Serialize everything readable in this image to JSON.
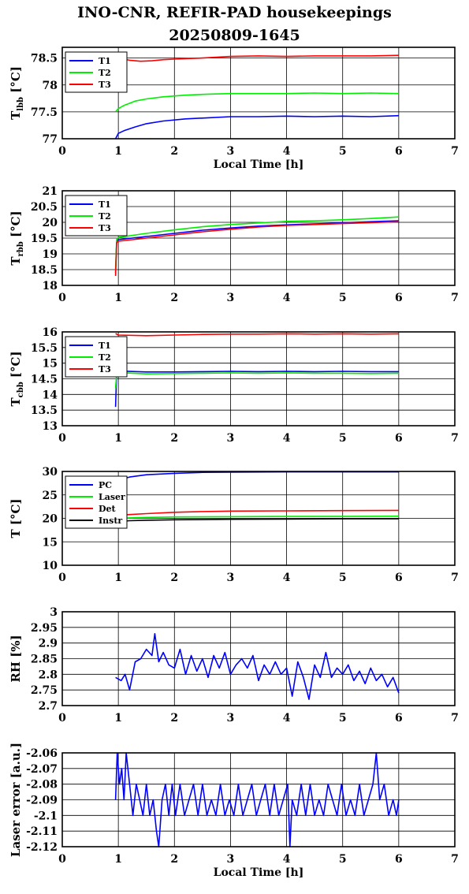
{
  "title_line1": "INO-CNR, REFIR-PAD housekeepings",
  "title_line2": "20250809-1645",
  "colors": {
    "blue": "#0000ff",
    "green": "#00ee00",
    "red": "#ff0000",
    "black": "#000000"
  },
  "chart_data": [
    {
      "type": "line",
      "ylabel_main": "T",
      "ylabel_sub": "lbb",
      "ylabel_rest": " [°C]",
      "xlabel": "Local Time [h]",
      "xlim": [
        0,
        7
      ],
      "ylim": [
        77,
        78.7
      ],
      "yticks": [
        "77",
        "77.5",
        "78",
        "78.5"
      ],
      "ytick_values": [
        77,
        77.5,
        78,
        78.5
      ],
      "xticks": [
        "0",
        "1",
        "2",
        "3",
        "4",
        "5",
        "6",
        "7"
      ],
      "grid": true,
      "legend_position": "top-left",
      "series": [
        {
          "name": "T1",
          "color": "#0000ff",
          "x": [
            0.95,
            1.0,
            1.1,
            1.3,
            1.5,
            1.8,
            2.2,
            2.6,
            3.0,
            3.5,
            4.0,
            4.5,
            5.0,
            5.5,
            6.0
          ],
          "y": [
            77.0,
            77.1,
            77.15,
            77.22,
            77.28,
            77.33,
            77.37,
            77.39,
            77.41,
            77.41,
            77.42,
            77.41,
            77.42,
            77.41,
            77.43
          ]
        },
        {
          "name": "T2",
          "color": "#00ee00",
          "x": [
            0.95,
            1.0,
            1.1,
            1.3,
            1.5,
            1.8,
            2.2,
            2.6,
            3.0,
            3.5,
            4.0,
            4.5,
            5.0,
            5.5,
            6.0
          ],
          "y": [
            77.5,
            77.56,
            77.62,
            77.7,
            77.74,
            77.78,
            77.81,
            77.83,
            77.84,
            77.84,
            77.84,
            77.85,
            77.84,
            77.85,
            77.84
          ]
        },
        {
          "name": "T3",
          "color": "#ff0000",
          "x": [
            0.95,
            1.0,
            1.2,
            1.4,
            1.6,
            1.8,
            2.0,
            2.5,
            3.0,
            3.5,
            4.0,
            4.5,
            5.0,
            5.5,
            6.0
          ],
          "y": [
            78.55,
            78.5,
            78.46,
            78.44,
            78.45,
            78.47,
            78.48,
            78.5,
            78.53,
            78.54,
            78.53,
            78.54,
            78.54,
            78.54,
            78.55
          ]
        }
      ]
    },
    {
      "type": "line",
      "ylabel_main": "T",
      "ylabel_sub": "rbb",
      "ylabel_rest": " [°C]",
      "xlabel": "",
      "xlim": [
        0,
        7
      ],
      "ylim": [
        18,
        21
      ],
      "yticks": [
        "18",
        "18.5",
        "19",
        "19.5",
        "20",
        "20.5",
        "21"
      ],
      "ytick_values": [
        18,
        18.5,
        19,
        19.5,
        20,
        20.5,
        21
      ],
      "xticks": [
        "0",
        "1",
        "2",
        "3",
        "4",
        "5",
        "6",
        "7"
      ],
      "grid": true,
      "legend_position": "top-left",
      "series": [
        {
          "name": "T1",
          "color": "#0000ff",
          "x": [
            0.95,
            0.97,
            1.0,
            1.5,
            2.0,
            2.5,
            3.0,
            3.5,
            4.0,
            4.5,
            5.0,
            5.5,
            6.0
          ],
          "y": [
            18.4,
            19.4,
            19.45,
            19.55,
            19.65,
            19.75,
            19.82,
            19.88,
            19.92,
            19.95,
            19.98,
            20.02,
            20.05
          ]
        },
        {
          "name": "T2",
          "color": "#00ee00",
          "x": [
            0.95,
            0.97,
            1.0,
            1.5,
            2.0,
            2.5,
            3.0,
            3.5,
            4.0,
            4.5,
            5.0,
            5.5,
            6.0
          ],
          "y": [
            18.5,
            19.45,
            19.52,
            19.65,
            19.76,
            19.86,
            19.93,
            19.98,
            20.03,
            20.05,
            20.08,
            20.12,
            20.17
          ]
        },
        {
          "name": "T3",
          "color": "#ff0000",
          "x": [
            0.95,
            0.97,
            1.0,
            1.5,
            2.0,
            2.5,
            3.0,
            3.5,
            4.0,
            4.5,
            5.0,
            5.5,
            6.0
          ],
          "y": [
            18.3,
            19.35,
            19.4,
            19.5,
            19.6,
            19.7,
            19.78,
            19.85,
            19.9,
            19.93,
            19.96,
            19.99,
            20.02
          ]
        }
      ]
    },
    {
      "type": "line",
      "ylabel_main": "T",
      "ylabel_sub": "cbb",
      "ylabel_rest": " [°C]",
      "xlabel": "",
      "xlim": [
        0,
        7
      ],
      "ylim": [
        13,
        16
      ],
      "yticks": [
        "13",
        "13.5",
        "14",
        "14.5",
        "15",
        "15.5",
        "16"
      ],
      "ytick_values": [
        13,
        13.5,
        14,
        14.5,
        15,
        15.5,
        16
      ],
      "xticks": [
        "0",
        "1",
        "2",
        "3",
        "4",
        "5",
        "6",
        "7"
      ],
      "grid": true,
      "legend_position": "top-left",
      "series": [
        {
          "name": "T1",
          "color": "#0000ff",
          "x": [
            0.95,
            0.97,
            1.0,
            1.5,
            2.0,
            2.5,
            3.0,
            3.5,
            4.0,
            4.5,
            5.0,
            5.5,
            6.0
          ],
          "y": [
            13.6,
            14.7,
            14.75,
            14.72,
            14.72,
            14.73,
            14.74,
            14.73,
            14.74,
            14.73,
            14.74,
            14.73,
            14.73
          ]
        },
        {
          "name": "T2",
          "color": "#00ee00",
          "x": [
            0.95,
            0.97,
            1.0,
            1.5,
            2.0,
            2.5,
            3.0,
            3.5,
            4.0,
            4.5,
            5.0,
            5.5,
            6.0
          ],
          "y": [
            14.2,
            14.65,
            14.7,
            14.66,
            14.67,
            14.68,
            14.69,
            14.68,
            14.69,
            14.68,
            14.68,
            14.67,
            14.68
          ]
        },
        {
          "name": "T3",
          "color": "#ff0000",
          "x": [
            0.95,
            1.0,
            1.5,
            2.0,
            2.5,
            3.0,
            3.5,
            4.0,
            4.5,
            5.0,
            5.5,
            6.0
          ],
          "y": [
            15.95,
            15.9,
            15.88,
            15.9,
            15.92,
            15.93,
            15.93,
            15.94,
            15.93,
            15.94,
            15.93,
            15.94
          ]
        }
      ]
    },
    {
      "type": "line",
      "ylabel_main": "T [°C]",
      "ylabel_sub": "",
      "ylabel_rest": "",
      "xlabel": "",
      "xlim": [
        0,
        7
      ],
      "ylim": [
        10,
        30
      ],
      "yticks": [
        "10",
        "15",
        "20",
        "25",
        "30"
      ],
      "ytick_values": [
        10,
        15,
        20,
        25,
        30
      ],
      "xticks": [
        "0",
        "1",
        "2",
        "3",
        "4",
        "5",
        "6",
        "7"
      ],
      "grid": true,
      "legend_position": "top-left",
      "series": [
        {
          "name": "PC",
          "color": "#0000ff",
          "x": [
            0.95,
            1.2,
            1.5,
            2.0,
            2.5,
            3.0,
            4.0,
            5.0,
            6.0
          ],
          "y": [
            28.0,
            28.8,
            29.3,
            29.6,
            29.8,
            29.85,
            29.9,
            29.9,
            29.9
          ]
        },
        {
          "name": "Laser",
          "color": "#00ee00",
          "x": [
            0.95,
            1.2,
            1.5,
            2.0,
            3.0,
            4.0,
            5.0,
            6.0
          ],
          "y": [
            20.0,
            20.1,
            20.2,
            20.3,
            20.35,
            20.4,
            20.4,
            20.45
          ]
        },
        {
          "name": "Det",
          "color": "#ff0000",
          "x": [
            0.95,
            1.2,
            1.5,
            2.0,
            2.5,
            3.0,
            4.0,
            5.0,
            6.0
          ],
          "y": [
            20.6,
            20.8,
            21.0,
            21.3,
            21.45,
            21.55,
            21.6,
            21.65,
            21.7
          ]
        },
        {
          "name": "Instr",
          "color": "#000000",
          "x": [
            0.95,
            1.2,
            1.5,
            2.0,
            3.0,
            4.0,
            5.0,
            6.0
          ],
          "y": [
            19.3,
            19.5,
            19.6,
            19.7,
            19.8,
            19.85,
            19.9,
            19.9
          ]
        }
      ]
    },
    {
      "type": "line",
      "ylabel_main": "RH [%]",
      "ylabel_sub": "",
      "ylabel_rest": "",
      "xlabel": "",
      "xlim": [
        0,
        7
      ],
      "ylim": [
        2.7,
        3.0
      ],
      "yticks": [
        "2.7",
        "2.75",
        "2.8",
        "2.85",
        "2.9",
        "2.95",
        "3"
      ],
      "ytick_values": [
        2.7,
        2.75,
        2.8,
        2.85,
        2.9,
        2.95,
        3.0
      ],
      "xticks": [
        "0",
        "1",
        "2",
        "3",
        "4",
        "5",
        "6",
        "7"
      ],
      "grid": true,
      "legend_position": "none",
      "series": [
        {
          "color": "#0000ff",
          "x": [
            0.95,
            1.05,
            1.12,
            1.2,
            1.3,
            1.4,
            1.5,
            1.6,
            1.65,
            1.72,
            1.8,
            1.9,
            2.0,
            2.1,
            2.2,
            2.3,
            2.4,
            2.5,
            2.6,
            2.7,
            2.8,
            2.9,
            3.0,
            3.1,
            3.2,
            3.3,
            3.4,
            3.5,
            3.6,
            3.7,
            3.8,
            3.9,
            4.0,
            4.1,
            4.2,
            4.3,
            4.4,
            4.5,
            4.6,
            4.7,
            4.8,
            4.9,
            5.0,
            5.1,
            5.2,
            5.3,
            5.4,
            5.5,
            5.6,
            5.7,
            5.8,
            5.9,
            6.0
          ],
          "y": [
            2.79,
            2.78,
            2.8,
            2.75,
            2.84,
            2.85,
            2.88,
            2.86,
            2.93,
            2.84,
            2.87,
            2.83,
            2.82,
            2.88,
            2.8,
            2.86,
            2.81,
            2.85,
            2.79,
            2.86,
            2.82,
            2.87,
            2.8,
            2.83,
            2.85,
            2.82,
            2.86,
            2.78,
            2.83,
            2.8,
            2.84,
            2.8,
            2.82,
            2.73,
            2.84,
            2.79,
            2.72,
            2.83,
            2.79,
            2.87,
            2.79,
            2.82,
            2.8,
            2.83,
            2.78,
            2.81,
            2.77,
            2.82,
            2.78,
            2.8,
            2.76,
            2.79,
            2.74
          ]
        }
      ]
    },
    {
      "type": "line",
      "ylabel_main": "Laser error [a.u.]",
      "ylabel_sub": "",
      "ylabel_rest": "",
      "xlabel": "Local Time [h]",
      "xlim": [
        0,
        7
      ],
      "ylim": [
        -2.12,
        -2.06
      ],
      "yticks": [
        "-2.12",
        "-2.11",
        "-2.1",
        "-2.09",
        "-2.08",
        "-2.07",
        "-2.06"
      ],
      "ytick_values": [
        -2.12,
        -2.11,
        -2.1,
        -2.09,
        -2.08,
        -2.07,
        -2.06
      ],
      "xticks": [
        "0",
        "1",
        "2",
        "3",
        "4",
        "5",
        "6",
        "7"
      ],
      "grid": true,
      "legend_position": "none",
      "series": [
        {
          "color": "#0000ff",
          "x": [
            0.95,
            0.98,
            1.02,
            1.06,
            1.1,
            1.14,
            1.2,
            1.26,
            1.32,
            1.38,
            1.44,
            1.5,
            1.56,
            1.62,
            1.68,
            1.72,
            1.78,
            1.84,
            1.9,
            1.96,
            2.02,
            2.1,
            2.18,
            2.26,
            2.34,
            2.42,
            2.5,
            2.58,
            2.66,
            2.74,
            2.82,
            2.9,
            2.98,
            3.06,
            3.14,
            3.22,
            3.3,
            3.38,
            3.46,
            3.54,
            3.62,
            3.7,
            3.78,
            3.86,
            3.94,
            4.02,
            4.06,
            4.1,
            4.18,
            4.26,
            4.34,
            4.42,
            4.5,
            4.58,
            4.66,
            4.74,
            4.82,
            4.9,
            4.98,
            5.06,
            5.14,
            5.22,
            5.3,
            5.38,
            5.46,
            5.54,
            5.6,
            5.66,
            5.74,
            5.82,
            5.9,
            5.96,
            6.0
          ],
          "y": [
            -2.09,
            -2.06,
            -2.08,
            -2.07,
            -2.09,
            -2.06,
            -2.08,
            -2.1,
            -2.08,
            -2.09,
            -2.1,
            -2.08,
            -2.1,
            -2.09,
            -2.11,
            -2.12,
            -2.09,
            -2.08,
            -2.1,
            -2.08,
            -2.1,
            -2.08,
            -2.1,
            -2.09,
            -2.08,
            -2.1,
            -2.08,
            -2.1,
            -2.09,
            -2.1,
            -2.08,
            -2.1,
            -2.09,
            -2.1,
            -2.08,
            -2.1,
            -2.09,
            -2.08,
            -2.1,
            -2.09,
            -2.08,
            -2.1,
            -2.08,
            -2.1,
            -2.09,
            -2.08,
            -2.12,
            -2.09,
            -2.1,
            -2.08,
            -2.1,
            -2.08,
            -2.1,
            -2.09,
            -2.1,
            -2.08,
            -2.09,
            -2.1,
            -2.08,
            -2.1,
            -2.09,
            -2.1,
            -2.08,
            -2.1,
            -2.09,
            -2.08,
            -2.06,
            -2.09,
            -2.08,
            -2.1,
            -2.09,
            -2.1,
            -2.09
          ]
        }
      ]
    }
  ]
}
